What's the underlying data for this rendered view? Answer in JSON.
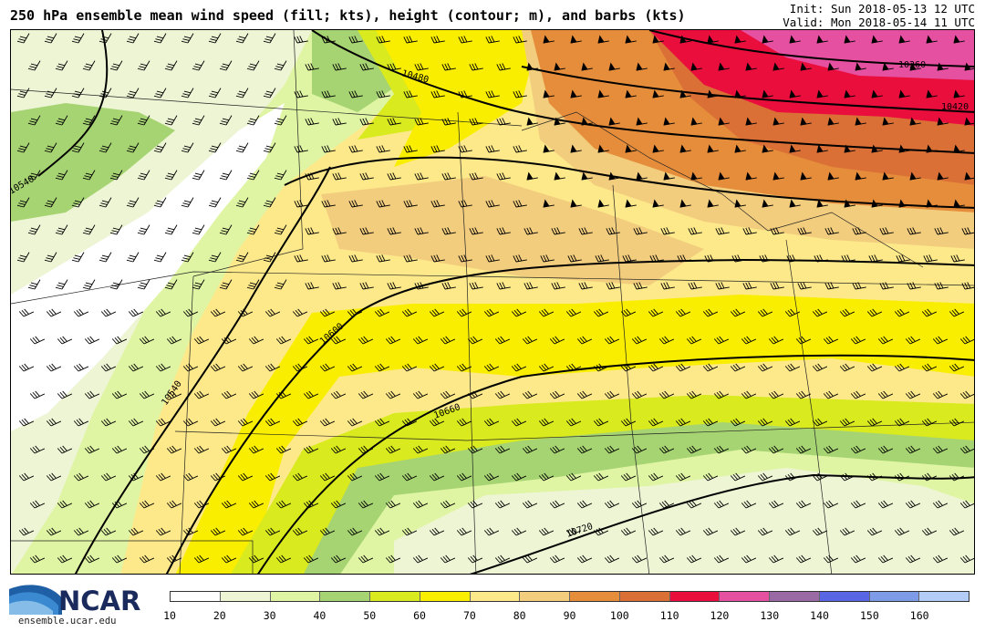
{
  "header": {
    "title": "250 hPa ensemble mean wind speed (fill; kts), height (contour; m), and barbs (kts)",
    "init": "Init: Sun 2018-05-13 12 UTC",
    "valid": "Valid: Mon 2018-05-14 11 UTC"
  },
  "map": {
    "contour_labels": [
      "10360",
      "10420",
      "10480",
      "10540",
      "10540",
      "10600",
      "10660",
      "10720"
    ]
  },
  "colorbar": {
    "ticks": [
      "10",
      "20",
      "30",
      "40",
      "50",
      "60",
      "70",
      "80",
      "90",
      "100",
      "110",
      "120",
      "130",
      "140",
      "150",
      "160"
    ],
    "colors": [
      "#ffffff",
      "#eef5d5",
      "#dff5a3",
      "#a6d472",
      "#d9ea1e",
      "#f9ee00",
      "#fde98a",
      "#f2cd7e",
      "#e58d3a",
      "#db7037",
      "#ea0e3d",
      "#e650a1",
      "#9a6aa5",
      "#5866e5",
      "#7e9be8",
      "#b3ccf5"
    ]
  },
  "logo": {
    "name": "NCAR",
    "url": "ensemble.ucar.edu"
  }
}
